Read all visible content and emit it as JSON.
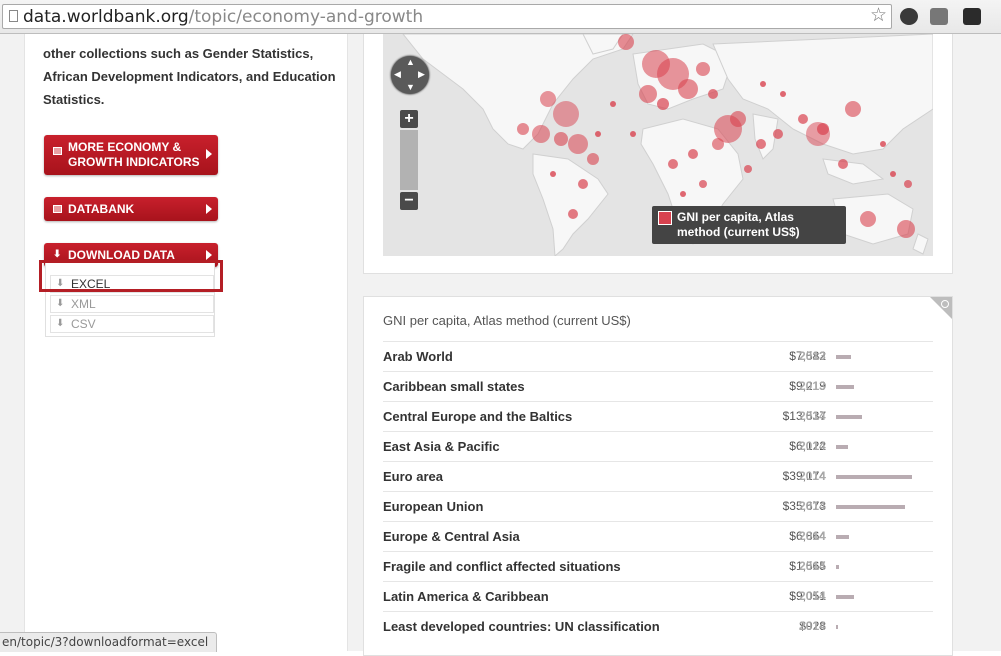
{
  "browser": {
    "url_host": "data.worldbank.org",
    "url_path": "/topic/economy-and-growth",
    "status_url": "en/topic/3?downloadformat=excel"
  },
  "sidebar": {
    "intro_text": "other collections such as Gender Statistics, African Development Indicators, and Education Statistics.",
    "more_indicators_label_1": "MORE ECONOMY &",
    "more_indicators_label_2": "GROWTH INDICATORS",
    "databank_label": "DATABANK",
    "download_label": "DOWNLOAD DATA",
    "download_options": [
      "EXCEL",
      "XML",
      "CSV"
    ]
  },
  "map": {
    "legend_line_1": "GNI per capita, Atlas",
    "legend_line_2": "method (current US$)",
    "zoom_in_label": "+",
    "zoom_out_label": "−",
    "marker_color": "#d8424f"
  },
  "table": {
    "title": "GNI per capita, Atlas method (current US$)",
    "rows": [
      {
        "country": "Arab World",
        "value": "$7,582",
        "year": "2013",
        "amount": 7582
      },
      {
        "country": "Caribbean small states",
        "value": "$9,219",
        "year": "2013",
        "amount": 9219
      },
      {
        "country": "Central Europe and the Baltics",
        "value": "$13,537",
        "year": "2014",
        "amount": 13537
      },
      {
        "country": "East Asia & Pacific",
        "value": "$6,122",
        "year": "2014",
        "amount": 6122
      },
      {
        "country": "Euro area",
        "value": "$39,174",
        "year": "2014",
        "amount": 39174
      },
      {
        "country": "European Union",
        "value": "$35,673",
        "year": "2014",
        "amount": 35673
      },
      {
        "country": "Europe & Central Asia",
        "value": "$6,864",
        "year": "2014",
        "amount": 6864
      },
      {
        "country": "Fragile and conflict affected situations",
        "value": "$1,565",
        "year": "2014",
        "amount": 1565
      },
      {
        "country": "Latin America & Caribbean",
        "value": "$9,051",
        "year": "2014",
        "amount": 9051
      },
      {
        "country": "Least developed countries: UN classification",
        "value": "$928",
        "year": "2014",
        "amount": 928
      }
    ]
  }
}
